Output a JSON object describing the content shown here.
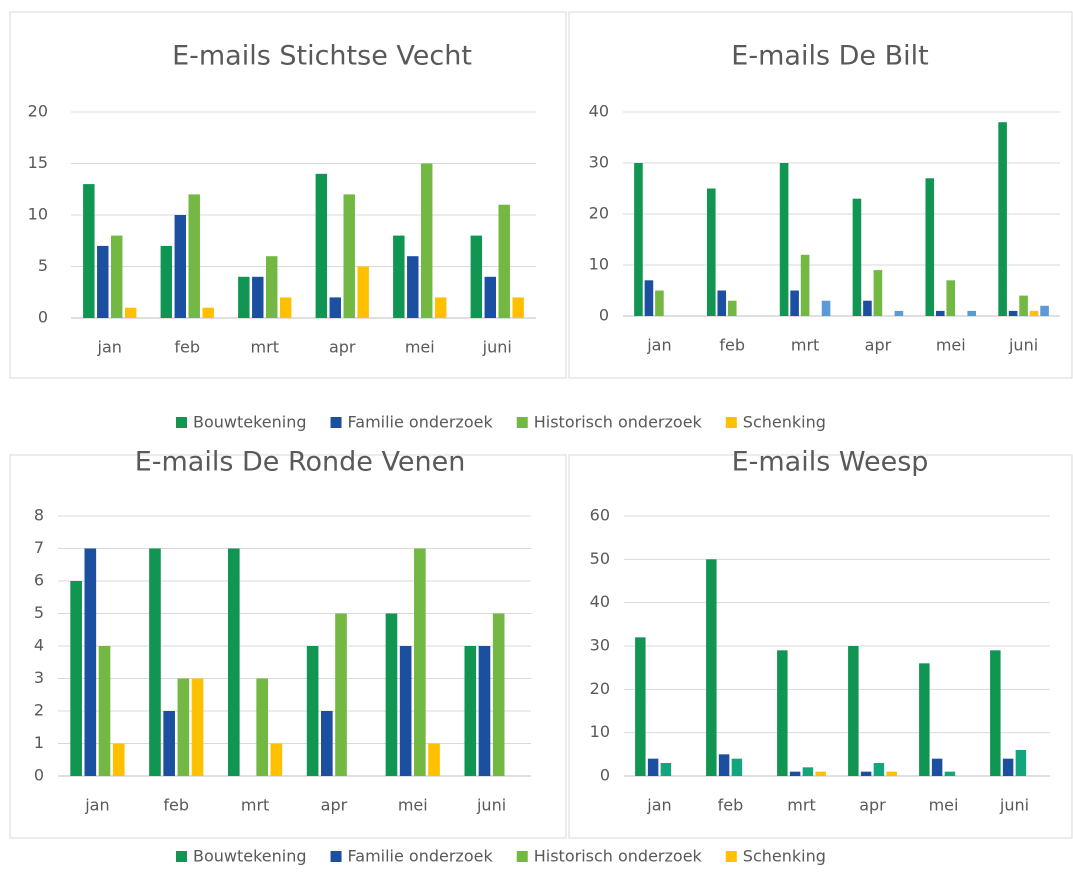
{
  "chart_data": [
    {
      "type": "bar",
      "title": "E-mails Stichtse Vecht",
      "categories": [
        "jan",
        "feb",
        "mrt",
        "apr",
        "mei",
        "juni"
      ],
      "ylim": [
        0,
        20
      ],
      "yticks": [
        0,
        5,
        10,
        15,
        20
      ],
      "grid": true,
      "series": [
        {
          "name": "Bouwtekening",
          "color": "#109552",
          "values": [
            13,
            7,
            4,
            14,
            8,
            8
          ]
        },
        {
          "name": "Familie onderzoek",
          "color": "#1c4fa0",
          "values": [
            7,
            10,
            4,
            2,
            6,
            4
          ]
        },
        {
          "name": "Historisch onderzoek",
          "color": "#72b843",
          "values": [
            8,
            12,
            6,
            12,
            15,
            11
          ]
        },
        {
          "name": "Schenking",
          "color": "#ffc000",
          "values": [
            1,
            1,
            2,
            5,
            2,
            2
          ]
        }
      ]
    },
    {
      "type": "bar",
      "title": "E-mails De Bilt",
      "categories": [
        "jan",
        "feb",
        "mrt",
        "apr",
        "mei",
        "juni"
      ],
      "ylim": [
        0,
        40
      ],
      "yticks": [
        0,
        10,
        20,
        30,
        40
      ],
      "grid": true,
      "series": [
        {
          "name": "Bouwtekening",
          "color": "#109552",
          "values": [
            30,
            25,
            30,
            23,
            27,
            38
          ]
        },
        {
          "name": "Familie onderzoek",
          "color": "#1c4fa0",
          "values": [
            7,
            5,
            5,
            3,
            1,
            1
          ]
        },
        {
          "name": "Historisch onderzoek",
          "color": "#72b843",
          "values": [
            5,
            3,
            12,
            9,
            7,
            4
          ]
        },
        {
          "name": "Schenking",
          "color": "#ffc000",
          "values": [
            0,
            0,
            0,
            0,
            0,
            1
          ]
        },
        {
          "color": "#5b9bd5",
          "values": [
            0,
            0,
            3,
            1,
            1,
            2
          ]
        }
      ]
    },
    {
      "type": "bar",
      "title": "E-mails De Ronde Venen",
      "categories": [
        "jan",
        "feb",
        "mrt",
        "apr",
        "mei",
        "juni"
      ],
      "ylim": [
        0,
        8
      ],
      "yticks": [
        0,
        1,
        2,
        3,
        4,
        5,
        6,
        7,
        8
      ],
      "grid": true,
      "series": [
        {
          "name": "Bouwtekening",
          "color": "#109552",
          "values": [
            6,
            7,
            7,
            4,
            5,
            4
          ]
        },
        {
          "name": "Familie onderzoek",
          "color": "#1c4fa0",
          "values": [
            7,
            2,
            0,
            2,
            4,
            4
          ]
        },
        {
          "name": "Historisch onderzoek",
          "color": "#72b843",
          "values": [
            4,
            3,
            3,
            5,
            7,
            5
          ]
        },
        {
          "name": "Schenking",
          "color": "#ffc000",
          "values": [
            1,
            3,
            1,
            0,
            1,
            0
          ]
        }
      ]
    },
    {
      "type": "bar",
      "title": "E-mails Weesp",
      "categories": [
        "jan",
        "feb",
        "mrt",
        "apr",
        "mei",
        "juni"
      ],
      "ylim": [
        0,
        60
      ],
      "yticks": [
        0,
        10,
        20,
        30,
        40,
        50,
        60
      ],
      "grid": true,
      "series": [
        {
          "color": "#109552",
          "values": [
            32,
            50,
            29,
            30,
            26,
            29
          ]
        },
        {
          "color": "#1c4fa0",
          "values": [
            4,
            5,
            1,
            1,
            4,
            4
          ]
        },
        {
          "color": "#13a57c",
          "values": [
            3,
            4,
            2,
            3,
            1,
            6
          ]
        },
        {
          "color": "#ffc000",
          "values": [
            0,
            0,
            1,
            1,
            0,
            0
          ]
        }
      ]
    }
  ]
}
